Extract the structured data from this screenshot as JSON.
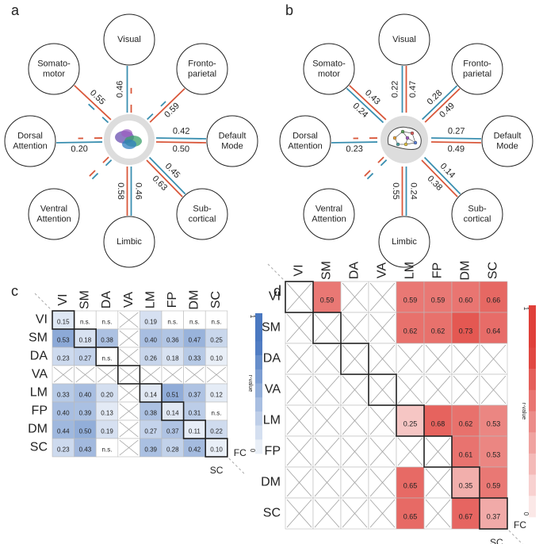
{
  "panels": [
    "a",
    "b",
    "c",
    "d"
  ],
  "diagrams": [
    {
      "nodes": [
        {
          "lines": [
            "Visual"
          ],
          "sc": "0.46",
          "fc": null
        },
        {
          "lines": [
            "Fronto-",
            "parietal"
          ],
          "sc": null,
          "fc": "0.59"
        },
        {
          "lines": [
            "Default",
            "Mode"
          ],
          "sc": "0.42",
          "fc": "0.50"
        },
        {
          "lines": [
            "Sub-",
            "cortical"
          ],
          "sc": "0.45",
          "fc": "0.63"
        },
        {
          "lines": [
            "Limbic"
          ],
          "sc": "0.46",
          "fc": "0.58"
        },
        {
          "lines": [
            "Ventral",
            "Attention"
          ],
          "sc": null,
          "fc": null
        },
        {
          "lines": [
            "Dorsal",
            "Attention"
          ],
          "sc": "0.20",
          "fc": null
        },
        {
          "lines": [
            "Somato-",
            "motor"
          ],
          "sc": null,
          "fc": "0.55"
        }
      ]
    },
    {
      "nodes": [
        {
          "lines": [
            "Visual"
          ],
          "sc": "0.22",
          "fc": "0.47"
        },
        {
          "lines": [
            "Fronto-",
            "parietal"
          ],
          "sc": "0.28",
          "fc": "0.49"
        },
        {
          "lines": [
            "Default",
            "Mode"
          ],
          "sc": "0.27",
          "fc": "0.49"
        },
        {
          "lines": [
            "Sub-",
            "cortical"
          ],
          "sc": "0.14",
          "fc": "0.38"
        },
        {
          "lines": [
            "Limbic"
          ],
          "sc": "0.24",
          "fc": "0.55"
        },
        {
          "lines": [
            "Ventral",
            "Attention"
          ],
          "sc": null,
          "fc": null
        },
        {
          "lines": [
            "Dorsal",
            "Attention"
          ],
          "sc": "0.23",
          "fc": null
        },
        {
          "lines": [
            "Somato-",
            "motor"
          ],
          "sc": "0.24",
          "fc": "0.43"
        }
      ]
    }
  ],
  "matrices": [
    {
      "labels": [
        "VI",
        "SM",
        "DA",
        "VA",
        "LM",
        "FP",
        "DM",
        "SC"
      ],
      "corner_row": "FC",
      "corner_col": "SC",
      "bar_top": "1",
      "bar_bottom": "0",
      "bar_label": "r-value",
      "rows": [
        [
          "0.15",
          "n.s.",
          "n.s.",
          null,
          "0.19",
          "n.s.",
          "n.s.",
          "n.s."
        ],
        [
          "0.53",
          "0.18",
          "0.38",
          null,
          "0.40",
          "0.36",
          "0.47",
          "0.25"
        ],
        [
          "0.23",
          "0.27",
          "n.s.",
          null,
          "0.26",
          "0.18",
          "0.33",
          "0.10"
        ],
        [
          null,
          null,
          null,
          null,
          null,
          null,
          null,
          null
        ],
        [
          "0.33",
          "0.40",
          "0.20",
          null,
          "0.14",
          "0.51",
          "0.37",
          "0.12"
        ],
        [
          "0.40",
          "0.39",
          "0.13",
          null,
          "0.38",
          "0.14",
          "0.31",
          "n.s."
        ],
        [
          "0.44",
          "0.50",
          "0.19",
          null,
          "0.27",
          "0.37",
          "0.11",
          "0.22"
        ],
        [
          "0.23",
          "0.43",
          "n.s.",
          null,
          "0.39",
          "0.28",
          "0.42",
          "0.10"
        ]
      ]
    },
    {
      "labels": [
        "VI",
        "SM",
        "DA",
        "VA",
        "LM",
        "FP",
        "DM",
        "SC"
      ],
      "corner_row": "FC",
      "corner_col": "SC",
      "bar_top": "1",
      "bar_bottom": "0",
      "bar_label": "r-value",
      "rows": [
        [
          null,
          "0.59",
          null,
          null,
          "0.59",
          "0.59",
          "0.60",
          "0.66"
        ],
        [
          null,
          null,
          null,
          null,
          "0.62",
          "0.62",
          "0.73",
          "0.64"
        ],
        [
          null,
          null,
          null,
          null,
          null,
          null,
          null,
          null
        ],
        [
          null,
          null,
          null,
          null,
          null,
          null,
          null,
          null
        ],
        [
          null,
          null,
          null,
          null,
          "0.25",
          "0.68",
          "0.62",
          "0.53"
        ],
        [
          null,
          null,
          null,
          null,
          null,
          null,
          "0.61",
          "0.53"
        ],
        [
          null,
          null,
          null,
          null,
          "0.65",
          null,
          "0.35",
          "0.59"
        ],
        [
          null,
          null,
          null,
          null,
          "0.65",
          null,
          "0.67",
          "0.37"
        ]
      ]
    }
  ]
}
